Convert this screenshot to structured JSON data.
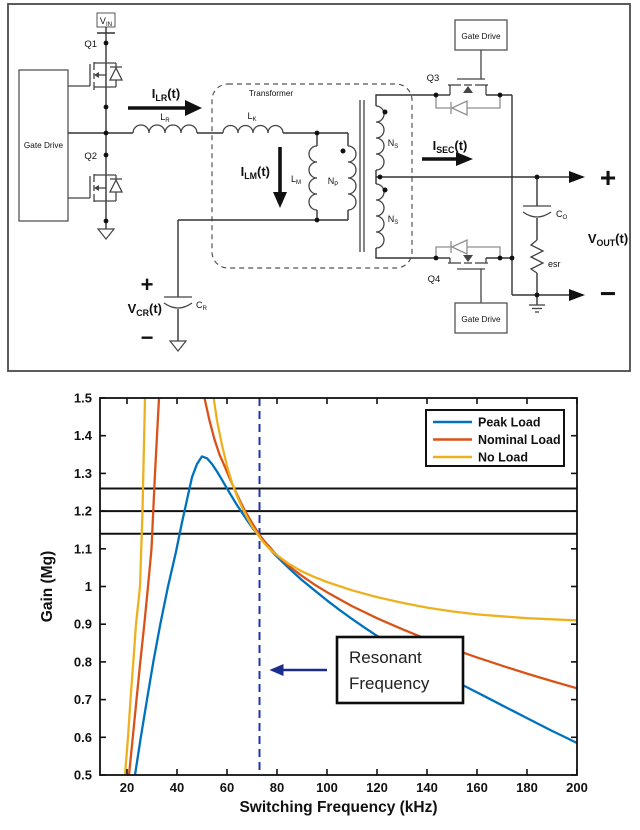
{
  "circuit": {
    "labels": {
      "vin": {
        "base": "V",
        "sub": "IN"
      },
      "q1": "Q1",
      "q2": "Q2",
      "q3": "Q3",
      "q4": "Q4",
      "gate_drive": "Gate Drive",
      "transformer": "Transformer",
      "ilr": {
        "base": "I",
        "sub": "LR",
        "suffix": "(t)"
      },
      "lr": {
        "base": "L",
        "sub": "R"
      },
      "lk": {
        "base": "L",
        "sub": "K"
      },
      "ilm": {
        "base": "I",
        "sub": "LM",
        "suffix": "(t)"
      },
      "lm": {
        "base": "L",
        "sub": "M"
      },
      "np": {
        "base": "N",
        "sub": "P"
      },
      "ns": {
        "base": "N",
        "sub": "S"
      },
      "isec": {
        "base": "I",
        "sub": "SEC",
        "suffix": "(t)"
      },
      "vcr": {
        "base": "V",
        "sub": "CR",
        "suffix": "(t)"
      },
      "cr": {
        "base": "C",
        "sub": "R"
      },
      "co": {
        "base": "C",
        "sub": "O"
      },
      "esr": "esr",
      "vout": {
        "base": "V",
        "sub": "OUT",
        "suffix": "(t)"
      },
      "plus": "+",
      "minus": "−"
    }
  },
  "chart_data": {
    "type": "line",
    "title": "",
    "xlabel": "Switching Frequency (kHz)",
    "ylabel": "Gain (Mg)",
    "xlim": [
      9.2,
      200
    ],
    "ylim": [
      0.5,
      1.5
    ],
    "xticks": [
      20,
      40,
      60,
      80,
      100,
      120,
      140,
      160,
      180,
      200
    ],
    "yticks": [
      0.5,
      0.6,
      0.7,
      0.8,
      0.9,
      1,
      1.1,
      1.2,
      1.3,
      1.4,
      1.5
    ],
    "grid": false,
    "legend_position": "top-right",
    "hlines": [
      1.26,
      1.2,
      1.14
    ],
    "vline": {
      "x": 73,
      "style": "dashed",
      "color": "#2036a8"
    },
    "annotation": {
      "lines": [
        "Resonant",
        "Frequency"
      ],
      "arrow_color": "#1a2d8f"
    },
    "series": [
      {
        "name": "Peak Load",
        "color": "#0072BD",
        "points": [
          [
            22,
            0.3
          ],
          [
            23.2,
            0.5
          ],
          [
            25.5,
            0.6
          ],
          [
            28,
            0.7
          ],
          [
            30.5,
            0.8
          ],
          [
            33.3,
            0.9
          ],
          [
            36.4,
            1.0
          ],
          [
            39.5,
            1.09
          ],
          [
            42,
            1.17
          ],
          [
            44,
            1.23
          ],
          [
            46,
            1.29
          ],
          [
            48,
            1.325
          ],
          [
            50,
            1.345
          ],
          [
            52,
            1.34
          ],
          [
            54,
            1.325
          ],
          [
            56,
            1.305
          ],
          [
            58,
            1.283
          ],
          [
            60,
            1.26
          ],
          [
            62,
            1.238
          ],
          [
            64,
            1.216
          ],
          [
            66,
            1.196
          ],
          [
            68,
            1.176
          ],
          [
            70,
            1.157
          ],
          [
            72,
            1.14
          ],
          [
            74,
            1.124
          ],
          [
            76,
            1.108
          ],
          [
            78,
            1.093
          ],
          [
            80,
            1.079
          ],
          [
            85,
            1.047
          ],
          [
            90,
            1.017
          ],
          [
            95,
            0.99
          ],
          [
            100,
            0.963
          ],
          [
            105,
            0.938
          ],
          [
            110,
            0.914
          ],
          [
            115,
            0.891
          ],
          [
            120,
            0.869
          ],
          [
            125,
            0.848
          ],
          [
            130,
            0.828
          ],
          [
            135,
            0.808
          ],
          [
            140,
            0.789
          ],
          [
            145,
            0.771
          ],
          [
            150,
            0.753
          ],
          [
            155,
            0.736
          ],
          [
            160,
            0.719
          ],
          [
            165,
            0.702
          ],
          [
            170,
            0.685
          ],
          [
            175,
            0.668
          ],
          [
            180,
            0.651
          ],
          [
            185,
            0.634
          ],
          [
            190,
            0.617
          ],
          [
            195,
            0.601
          ],
          [
            200,
            0.585
          ]
        ]
      },
      {
        "name": "Nominal Load",
        "color": "#D95319",
        "points": [
          [
            19.8,
            0.3
          ],
          [
            20.8,
            0.5
          ],
          [
            22.3,
            0.6
          ],
          [
            23.8,
            0.7
          ],
          [
            25.3,
            0.8
          ],
          [
            26.9,
            0.9
          ],
          [
            28.4,
            1.0
          ],
          [
            29.8,
            1.1
          ],
          [
            31.2,
            1.3
          ],
          [
            32.8,
            1.5
          ],
          [
            35,
            1.8
          ],
          [
            38,
            1.97
          ],
          [
            41,
            2.0
          ],
          [
            44,
            1.85
          ],
          [
            47,
            1.65
          ],
          [
            49,
            1.55
          ],
          [
            51,
            1.5
          ],
          [
            53,
            1.44
          ],
          [
            55,
            1.39
          ],
          [
            57,
            1.35
          ],
          [
            59,
            1.32
          ],
          [
            61,
            1.288
          ],
          [
            63,
            1.258
          ],
          [
            65,
            1.23
          ],
          [
            67,
            1.203
          ],
          [
            69,
            1.18
          ],
          [
            71,
            1.158
          ],
          [
            73,
            1.137
          ],
          [
            75,
            1.12
          ],
          [
            77,
            1.105
          ],
          [
            79,
            1.09
          ],
          [
            81,
            1.077
          ],
          [
            85,
            1.053
          ],
          [
            90,
            1.028
          ],
          [
            95,
            1.005
          ],
          [
            100,
            0.985
          ],
          [
            110,
            0.948
          ],
          [
            120,
            0.916
          ],
          [
            130,
            0.887
          ],
          [
            140,
            0.86
          ],
          [
            150,
            0.835
          ],
          [
            160,
            0.812
          ],
          [
            170,
            0.79
          ],
          [
            180,
            0.769
          ],
          [
            190,
            0.749
          ],
          [
            200,
            0.73
          ]
        ]
      },
      {
        "name": "No Load",
        "color": "#EDB120",
        "points": [
          [
            17.8,
            0.3
          ],
          [
            19.2,
            0.5
          ],
          [
            20.4,
            0.6
          ],
          [
            21.4,
            0.7
          ],
          [
            22.5,
            0.8
          ],
          [
            23.6,
            0.9
          ],
          [
            25.2,
            1.0
          ],
          [
            26.2,
            1.2
          ],
          [
            27.2,
            1.5
          ],
          [
            30,
            2.0
          ],
          [
            34,
            2.35
          ],
          [
            38,
            2.45
          ],
          [
            42,
            2.25
          ],
          [
            46,
            1.95
          ],
          [
            50,
            1.7
          ],
          [
            52,
            1.62
          ],
          [
            54,
            1.53
          ],
          [
            56,
            1.44
          ],
          [
            58,
            1.375
          ],
          [
            60,
            1.32
          ],
          [
            62,
            1.275
          ],
          [
            64,
            1.24
          ],
          [
            66,
            1.21
          ],
          [
            68,
            1.184
          ],
          [
            70,
            1.16
          ],
          [
            72,
            1.141
          ],
          [
            74,
            1.122
          ],
          [
            76,
            1.107
          ],
          [
            78,
            1.094
          ],
          [
            80,
            1.083
          ],
          [
            85,
            1.059
          ],
          [
            90,
            1.04
          ],
          [
            95,
            1.025
          ],
          [
            100,
            1.012
          ],
          [
            110,
            0.99
          ],
          [
            120,
            0.972
          ],
          [
            130,
            0.957
          ],
          [
            140,
            0.944
          ],
          [
            150,
            0.934
          ],
          [
            160,
            0.926
          ],
          [
            170,
            0.921
          ],
          [
            180,
            0.916
          ],
          [
            190,
            0.913
          ],
          [
            200,
            0.91
          ]
        ]
      }
    ]
  }
}
